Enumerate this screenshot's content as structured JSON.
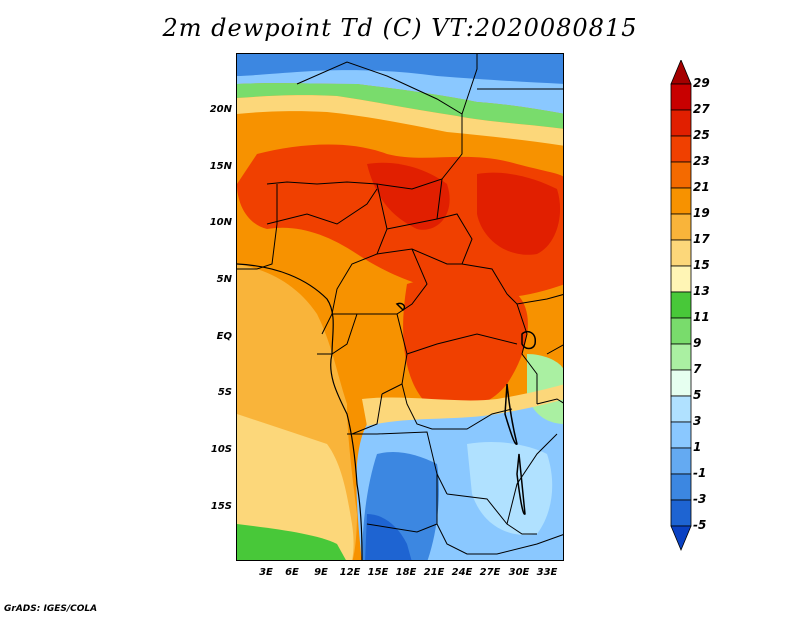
{
  "title": "2m dewpoint Td (C) VT:2020080815",
  "credit": "GrADS: IGES/COLA",
  "lat_labels": [
    "20N",
    "15N",
    "10N",
    "5N",
    "EQ",
    "5S",
    "10S",
    "15S"
  ],
  "lon_labels": [
    "3E",
    "6E",
    "9E",
    "12E",
    "15E",
    "18E",
    "21E",
    "24E",
    "27E",
    "30E",
    "33E"
  ],
  "colorbar": {
    "labels": [
      "29",
      "27",
      "25",
      "23",
      "21",
      "19",
      "17",
      "15",
      "13",
      "11",
      "9",
      "7",
      "5",
      "3",
      "1",
      "-1",
      "-3",
      "-5"
    ],
    "colors": [
      "#a50000",
      "#c80000",
      "#e11f00",
      "#f04000",
      "#f46a00",
      "#f79200",
      "#f9b43a",
      "#fcd77a",
      "#fff5b5",
      "#48c839",
      "#79dc6c",
      "#aaf0a2",
      "#e6fff0",
      "#b0e1ff",
      "#8ac8ff",
      "#64aaf2",
      "#3c87e1",
      "#1e64d2",
      "#0a41c3"
    ]
  }
}
